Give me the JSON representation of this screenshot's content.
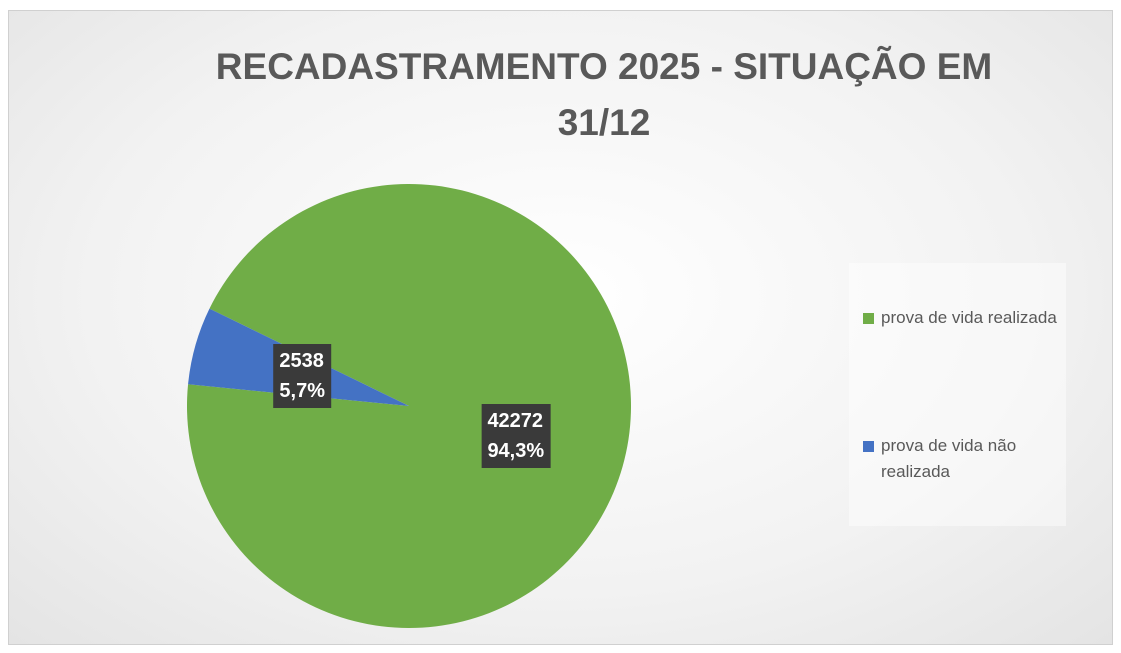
{
  "chart_data": {
    "type": "pie",
    "title": "RECADASTRAMENTO 2025 - SITUAÇÃO EM 31/12",
    "categories": [
      "prova de vida realizada",
      "prova de vida não realizada"
    ],
    "values": [
      42272,
      2538
    ],
    "percent_labels": [
      "94,3%",
      "5,7%"
    ],
    "colors": [
      "#70ad47",
      "#4472c4"
    ],
    "legend": "right"
  }
}
